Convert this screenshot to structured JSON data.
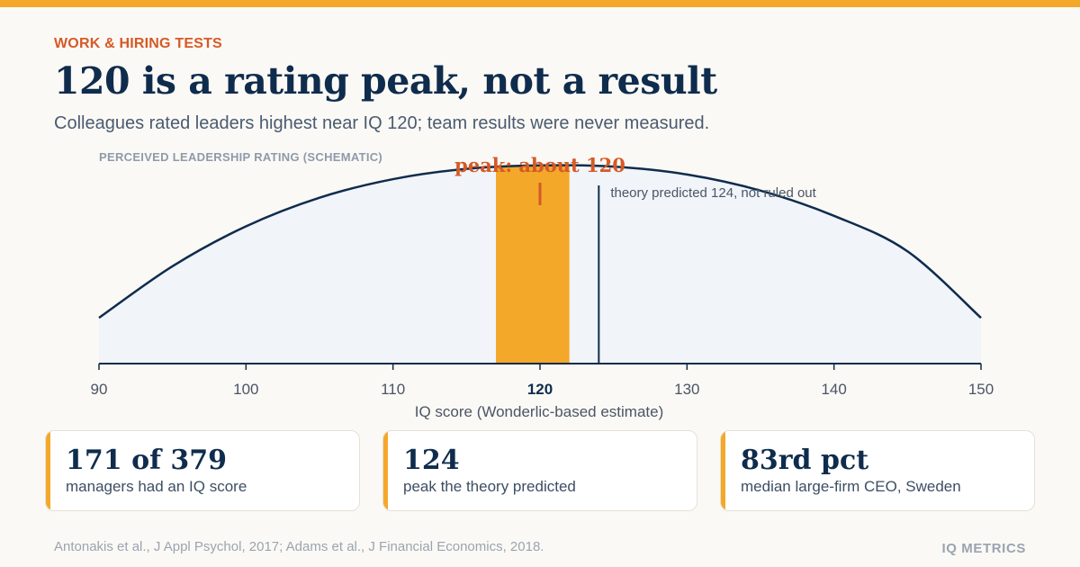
{
  "header": {
    "eyebrow": "WORK & HIRING TESTS",
    "title": "120 is a rating peak, not a result",
    "subtitle": "Colleagues rated leaders highest near IQ 120; team results were never measured."
  },
  "chart_data": {
    "type": "area",
    "panel_label": "PERCEIVED LEADERSHIP RATING (SCHEMATIC)",
    "xlabel": "IQ score (Wonderlic-based estimate)",
    "xlim": [
      90,
      150
    ],
    "ylim": [
      0,
      1
    ],
    "x_ticks": [
      90,
      100,
      110,
      120,
      130,
      140,
      150
    ],
    "highlight_tick": 120,
    "curve": {
      "x": [
        90,
        95,
        100,
        105,
        110,
        115,
        120,
        125,
        130,
        135,
        140,
        145,
        150
      ],
      "y": [
        0.227,
        0.483,
        0.681,
        0.823,
        0.915,
        0.966,
        0.983,
        0.977,
        0.938,
        0.858,
        0.733,
        0.557,
        0.227
      ]
    },
    "peak_band": {
      "x_start": 117,
      "x_end": 122
    },
    "peak_marker": {
      "x": 120,
      "label": "peak: about 120"
    },
    "theory_line": {
      "x": 124,
      "label": "theory predicted 124, not ruled out"
    },
    "colors": {
      "curve": "#0f2c4d",
      "fill": "#f1f4f9",
      "band": "#f4a82a",
      "peak": "#d55a27",
      "axis_text": "#4a5566",
      "panel_label": "#8e9aab"
    }
  },
  "stats": [
    {
      "value": "171 of 379",
      "label": "managers had an IQ score"
    },
    {
      "value": "124",
      "label": "peak the theory predicted"
    },
    {
      "value": "83rd pct",
      "label": "median large-firm CEO, Sweden"
    }
  ],
  "footer": {
    "source": "Antonakis et al., J Appl Psychol, 2017; Adams et al., J Financial Economics, 2018.",
    "brand": "IQ METRICS"
  }
}
